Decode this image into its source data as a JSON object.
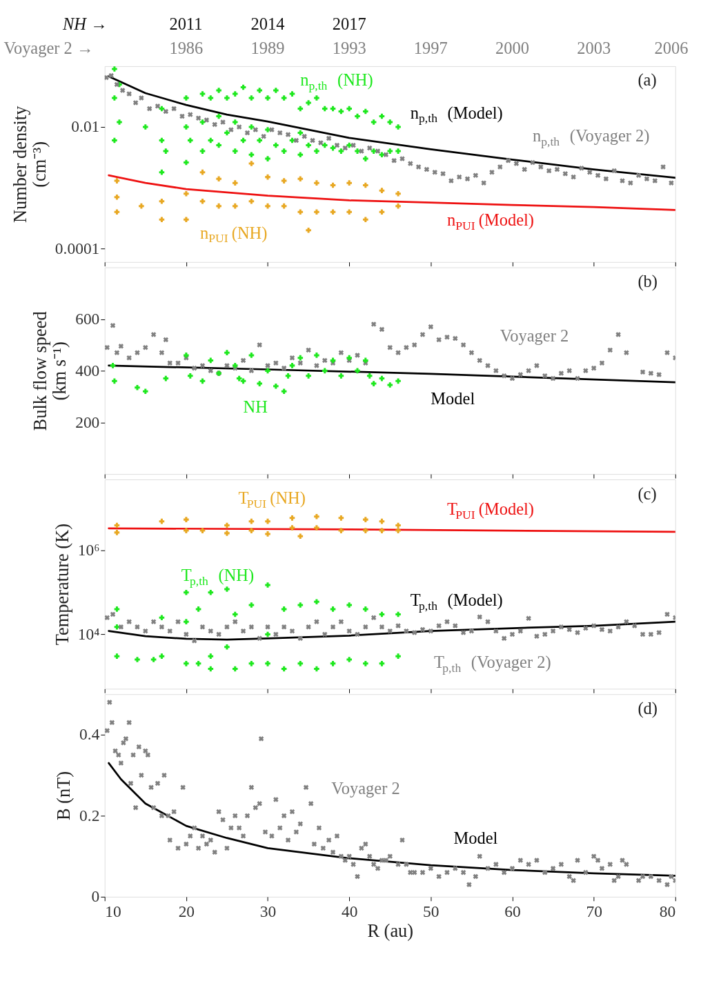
{
  "chart_data": [
    {
      "type": "scatter",
      "ylabel": "Number density\n(cm⁻³)",
      "xlim": [
        10,
        80
      ],
      "xticks": [
        10,
        20,
        30,
        40,
        50,
        60,
        70,
        80
      ],
      "ylim": [
        6e-05,
        0.1
      ],
      "yticks": [
        0.0001,
        0.01
      ],
      "log": true,
      "grid": false,
      "legend": false,
      "tick_labels": "y",
      "annotations": [
        "(a)",
        "NH →",
        "2011",
        "2014",
        "2017",
        "Voyager 2 →",
        "1986",
        "1989",
        "1993",
        "1997",
        "2000",
        "2003",
        "2006"
      ],
      "series": [
        {
          "name": "n$_{p,th}$ (NH)",
          "color": "#1ee81e",
          "marker": "cross",
          "x": [
            11.2,
            11.2,
            11.2,
            11.8,
            11.8,
            15,
            17,
            17,
            17,
            17.5,
            20,
            20,
            20,
            20.5,
            22,
            22,
            22,
            23,
            23,
            24,
            24,
            24,
            25,
            25,
            26,
            26,
            26,
            27,
            27,
            28,
            28,
            28,
            29,
            29,
            30,
            30,
            30,
            31,
            31,
            32,
            32,
            33,
            33,
            34,
            34,
            34,
            35,
            35,
            36,
            36,
            37,
            37,
            38,
            38,
            39,
            39,
            40,
            40,
            41,
            41,
            42,
            42,
            43,
            43,
            44,
            44,
            45,
            45,
            46,
            46
          ],
          "values": [
            0.09,
            0.03,
            0.006,
            0.05,
            0.012,
            0.01,
            0.02,
            0.006,
            0.0018,
            0.004,
            0.03,
            0.01,
            0.0026,
            0.006,
            0.035,
            0.012,
            0.004,
            0.03,
            0.006,
            0.04,
            0.015,
            0.005,
            0.03,
            0.008,
            0.035,
            0.012,
            0.004,
            0.045,
            0.006,
            0.03,
            0.01,
            0.0035,
            0.04,
            0.006,
            0.03,
            0.009,
            0.003,
            0.04,
            0.005,
            0.03,
            0.004,
            0.035,
            0.006,
            0.02,
            0.008,
            0.0035,
            0.025,
            0.005,
            0.03,
            0.004,
            0.02,
            0.005,
            0.02,
            0.0045,
            0.018,
            0.004,
            0.02,
            0.005,
            0.015,
            0.004,
            0.018,
            0.003,
            0.012,
            0.004,
            0.015,
            0.0035,
            0.012,
            0.004,
            0.01,
            0.004
          ]
        },
        {
          "name": "n$_{PUI}$ (NH)",
          "color": "#e8a823",
          "marker": "cross",
          "x": [
            11.5,
            11.5,
            11.5,
            14.5,
            17,
            17,
            20,
            20,
            22,
            22,
            24,
            24,
            26,
            26,
            28,
            28,
            30,
            30,
            32,
            32,
            34,
            34,
            35,
            36,
            36,
            38,
            38,
            40,
            40,
            42,
            42,
            44,
            44,
            46,
            46
          ],
          "values": [
            0.0013,
            0.0007,
            0.0004,
            0.0005,
            0.0006,
            0.0003,
            0.0008,
            0.0003,
            0.0018,
            0.0006,
            0.0014,
            0.0005,
            0.0012,
            0.0005,
            0.0025,
            0.0006,
            0.0015,
            0.0005,
            0.0013,
            0.0005,
            0.0014,
            0.0004,
            0.0002,
            0.0012,
            0.0004,
            0.0011,
            0.0004,
            0.0012,
            0.0004,
            0.0011,
            0.0003,
            0.0009,
            0.0004,
            0.0008,
            0.0005
          ]
        },
        {
          "name": "n$_{p,th}$ (Voyager 2)",
          "color": "#808080",
          "marker": "x",
          "x": [
            10.2,
            10.8,
            11.5,
            12.2,
            13,
            13.8,
            14.5,
            15.5,
            16.5,
            17.5,
            18.5,
            19.5,
            20.5,
            21.5,
            22.5,
            23.5,
            24.5,
            25.5,
            26.5,
            27.5,
            28.5,
            29.5,
            30.5,
            31.5,
            32.5,
            33.5,
            34.5,
            35.5,
            36.5,
            37.5,
            38.5,
            39.5,
            40.5,
            41.5,
            42.5,
            43.5,
            44.5,
            45.5,
            46.5,
            47.5,
            48.5,
            49.5,
            50.5,
            51.5,
            52.5,
            53.5,
            54.5,
            55.5,
            56.5,
            57.5,
            58.5,
            59.5,
            60.5,
            61.5,
            62.5,
            63.5,
            64.5,
            65.5,
            66.5,
            67.5,
            68.5,
            69.5,
            70.5,
            71.5,
            72.5,
            73.5,
            74.5,
            75.5,
            76.5,
            77.5,
            78.5,
            79.5
          ],
          "values": [
            0.065,
            0.07,
            0.05,
            0.04,
            0.035,
            0.025,
            0.03,
            0.02,
            0.022,
            0.018,
            0.02,
            0.015,
            0.016,
            0.014,
            0.013,
            0.011,
            0.012,
            0.009,
            0.01,
            0.008,
            0.009,
            0.007,
            0.009,
            0.008,
            0.0075,
            0.006,
            0.007,
            0.006,
            0.0055,
            0.0065,
            0.005,
            0.0045,
            0.005,
            0.004,
            0.0045,
            0.004,
            0.0035,
            0.0028,
            0.003,
            0.0025,
            0.0022,
            0.002,
            0.0018,
            0.0017,
            0.0013,
            0.0015,
            0.0014,
            0.0016,
            0.0012,
            0.0018,
            0.0022,
            0.0028,
            0.0025,
            0.002,
            0.0026,
            0.0022,
            0.0019,
            0.002,
            0.0017,
            0.0015,
            0.0021,
            0.0018,
            0.0016,
            0.0014,
            0.0019,
            0.0013,
            0.0012,
            0.0016,
            0.0014,
            0.0013,
            0.0022,
            0.0012
          ]
        },
        {
          "name": "n$_{p,th}$ (Model)",
          "type": "line",
          "color": "#000000",
          "x": [
            10.5,
            15,
            20,
            25,
            30,
            40,
            50,
            60,
            70,
            80
          ],
          "values": [
            0.068,
            0.036,
            0.023,
            0.016,
            0.0123,
            0.0066,
            0.0043,
            0.0029,
            0.002,
            0.00146
          ]
        },
        {
          "name": "n$_{PUI}$ (Model)",
          "type": "line",
          "color": "#ee1111",
          "x": [
            10.5,
            15,
            20,
            30,
            40,
            50,
            60,
            70,
            80
          ],
          "values": [
            0.0016,
            0.0012,
            0.00095,
            0.00074,
            0.00062,
            0.00057,
            0.00052,
            0.00048,
            0.00043
          ]
        }
      ]
    },
    {
      "type": "scatter",
      "ylabel": "Bulk flow speed\n(km s⁻¹)",
      "xlim": [
        10,
        80
      ],
      "xticks": [
        10,
        20,
        30,
        40,
        50,
        60,
        70,
        80
      ],
      "ylim": [
        0,
        800
      ],
      "yticks": [
        200,
        400,
        600
      ],
      "grid": false,
      "legend": false,
      "tick_labels": "y",
      "annotations": [
        "(b)"
      ],
      "series": [
        {
          "name": "Voyager 2",
          "color": "#808080",
          "marker": "x",
          "x": [
            10.3,
            11,
            11.5,
            12,
            13,
            14,
            15,
            16,
            17,
            17.5,
            18,
            19,
            20,
            21,
            22,
            23,
            24,
            25,
            26,
            27,
            28,
            29,
            30,
            31,
            32,
            33,
            34,
            35,
            36,
            37,
            38,
            39,
            40,
            41,
            42,
            43,
            44,
            45,
            46,
            47,
            48,
            49,
            50,
            51,
            52,
            53,
            54,
            55,
            56,
            57,
            58,
            59,
            60,
            61,
            62,
            63,
            64,
            65,
            66,
            67,
            68,
            69,
            70,
            71,
            72,
            73,
            74,
            76,
            77,
            78,
            79,
            80
          ],
          "values": [
            490,
            575,
            470,
            495,
            450,
            470,
            490,
            540,
            470,
            520,
            430,
            430,
            450,
            410,
            420,
            400,
            390,
            420,
            410,
            440,
            400,
            500,
            420,
            430,
            410,
            450,
            430,
            480,
            420,
            440,
            430,
            470,
            440,
            460,
            430,
            580,
            560,
            490,
            470,
            490,
            500,
            540,
            570,
            520,
            530,
            525,
            500,
            470,
            440,
            420,
            400,
            380,
            370,
            385,
            400,
            420,
            380,
            370,
            390,
            400,
            370,
            400,
            410,
            430,
            480,
            540,
            470,
            395,
            390,
            385,
            470,
            450
          ]
        },
        {
          "name": "NH",
          "color": "#1ee81e",
          "marker": "cross",
          "x": [
            11,
            11.2,
            14,
            15,
            17.5,
            20,
            20.5,
            22,
            23,
            24,
            25,
            26,
            26.5,
            27,
            28,
            29,
            30,
            31,
            32,
            32.5,
            33,
            34,
            35,
            36,
            37,
            38,
            39,
            40,
            41,
            42,
            42.5,
            43,
            44,
            45,
            46
          ],
          "values": [
            420,
            360,
            335,
            320,
            370,
            460,
            380,
            360,
            440,
            390,
            470,
            420,
            370,
            360,
            460,
            350,
            400,
            340,
            320,
            380,
            420,
            450,
            380,
            460,
            400,
            440,
            380,
            450,
            400,
            440,
            380,
            350,
            370,
            345,
            360
          ]
        },
        {
          "name": "Model",
          "type": "line",
          "color": "#000000",
          "x": [
            10.5,
            30,
            50,
            80
          ],
          "values": [
            420,
            405,
            388,
            355
          ]
        }
      ]
    },
    {
      "type": "scatter",
      "ylabel": "Temperature (K)",
      "xlim": [
        10,
        80
      ],
      "xticks": [
        10,
        20,
        30,
        40,
        50,
        60,
        70,
        80
      ],
      "ylim": [
        500,
        50000000
      ],
      "yticks": [
        {
          "value": 10000,
          "label": "10⁴"
        },
        {
          "value": 1000000,
          "label": "10⁶"
        }
      ],
      "log": true,
      "grid": false,
      "legend": false,
      "tick_labels": "y",
      "annotations": [
        "(c)"
      ],
      "series": [
        {
          "name": "T$_{PUI}$ (NH)",
          "color": "#e8a823",
          "marker": "cross",
          "x": [
            11.5,
            11.5,
            17,
            20,
            20,
            22,
            25,
            25,
            28,
            28,
            30,
            30,
            33,
            33,
            34,
            36,
            36,
            39,
            39,
            42,
            42,
            44,
            44,
            46,
            46
          ],
          "values": [
            4000000,
            2700000,
            5000000,
            5500000,
            3000000,
            3000000,
            4000000,
            2600000,
            5000000,
            3000000,
            5000000,
            2500000,
            6000000,
            3500000,
            2200000,
            6500000,
            3500000,
            6000000,
            3000000,
            5500000,
            3000000,
            5000000,
            3000000,
            4000000,
            3000000
          ]
        },
        {
          "name": "T$_{PUI}$ (Model)",
          "type": "line",
          "color": "#ee1111",
          "x": [
            10.5,
            40,
            80
          ],
          "values": [
            3400000,
            3200000,
            2800000
          ]
        },
        {
          "name": "T$_{p,th}$ (NH)",
          "color": "#1ee81e",
          "marker": "cross",
          "x": [
            11.5,
            11.5,
            11.5,
            14,
            16,
            17,
            17,
            20,
            20,
            20,
            21.5,
            21.5,
            23,
            23,
            23,
            25,
            25,
            26,
            26,
            28,
            28,
            30,
            30,
            30,
            32,
            32,
            34,
            34,
            36,
            36,
            38,
            38,
            40,
            40,
            42,
            42,
            44,
            44,
            46,
            46
          ],
          "values": [
            40000,
            15000,
            3000,
            2500,
            2500,
            25000,
            3000,
            100000,
            20000,
            2000,
            40000,
            2000,
            100000,
            3000,
            1500,
            120000,
            5000,
            30000,
            1500,
            50000,
            2000,
            150000,
            10000,
            2000,
            40000,
            1500,
            50000,
            2000,
            60000,
            1500,
            40000,
            2000,
            50000,
            2500,
            40000,
            2000,
            30000,
            2000,
            30000,
            3000
          ]
        },
        {
          "name": "T$_{p,th}$ (Voyager 2)",
          "color": "#808080",
          "marker": "x",
          "x": [
            10.3,
            11,
            12,
            13,
            14,
            15,
            16,
            17,
            18,
            19,
            20,
            21,
            22,
            23,
            24,
            25,
            26,
            27,
            28,
            29,
            30,
            31,
            32,
            33,
            34,
            35,
            36,
            37,
            38,
            39,
            40,
            41,
            42,
            43,
            44,
            45,
            46,
            47,
            48,
            49,
            50,
            51,
            52,
            53,
            54,
            55,
            56,
            57,
            58,
            59,
            60,
            61,
            62,
            63,
            64,
            65,
            66,
            67,
            68,
            69,
            70,
            71,
            72,
            73,
            74,
            75,
            76,
            77,
            78,
            79,
            80
          ],
          "values": [
            25000,
            30000,
            15000,
            20000,
            15000,
            12000,
            20000,
            15000,
            12000,
            20000,
            10000,
            7000,
            15000,
            12000,
            10000,
            15000,
            20000,
            12000,
            15000,
            8000,
            15000,
            10000,
            15000,
            12000,
            8000,
            15000,
            20000,
            10000,
            15000,
            20000,
            12000,
            10000,
            15000,
            25000,
            15000,
            12000,
            16000,
            12000,
            11000,
            13000,
            12000,
            16000,
            20000,
            16000,
            11000,
            12000,
            26000,
            20000,
            12000,
            8000,
            10000,
            12000,
            24000,
            9000,
            10000,
            12000,
            15000,
            13000,
            11000,
            14000,
            16000,
            13000,
            12000,
            15000,
            20000,
            16000,
            10000,
            10000,
            11000,
            30000,
            25000
          ]
        },
        {
          "name": "T$_{p,th}$ (Model)",
          "type": "line",
          "color": "#000000",
          "x": [
            10.5,
            15,
            20,
            25,
            30,
            40,
            50,
            60,
            70,
            80
          ],
          "values": [
            12000,
            9000,
            7800,
            7500,
            8000,
            9300,
            12000,
            14000,
            16000,
            20000
          ]
        }
      ]
    },
    {
      "type": "scatter",
      "xlabel": "R (au)",
      "ylabel": "B (nT)",
      "xlim": [
        10,
        80
      ],
      "xticks": [
        10,
        20,
        30,
        40,
        50,
        60,
        70,
        80
      ],
      "ylim": [
        0,
        0.5
      ],
      "yticks": [
        0,
        0.2,
        0.4
      ],
      "grid": false,
      "legend": false,
      "annotations": [
        "(d)"
      ],
      "series": [
        {
          "name": "Voyager 2",
          "color": "#808080",
          "marker": "x",
          "x": [
            10.3,
            10.6,
            10.9,
            11.3,
            11.7,
            12,
            12.3,
            12.6,
            13,
            13.2,
            13.5,
            13.8,
            14.2,
            14.5,
            15,
            15.3,
            15.7,
            16,
            16.5,
            17,
            17.3,
            17.8,
            18,
            18.5,
            19,
            19.6,
            20,
            20.5,
            21,
            21.5,
            22,
            22.5,
            23,
            23.5,
            24,
            24.5,
            25,
            25.5,
            26,
            26.5,
            27,
            27.5,
            28,
            28.5,
            29,
            29.2,
            29.7,
            30.5,
            31,
            31.5,
            32,
            32.5,
            33,
            33.5,
            34,
            34.7,
            35.3,
            35.7,
            36.3,
            36.8,
            37.5,
            38,
            38.5,
            39,
            39.5,
            40,
            40.5,
            41,
            41.5,
            42,
            42.5,
            43,
            43.5,
            44,
            44.5,
            45,
            46,
            46.5,
            47,
            47.5,
            48,
            49,
            50,
            51,
            52,
            53,
            54,
            54.7,
            55.5,
            56,
            57,
            58,
            59,
            60,
            61,
            62,
            63,
            64,
            65,
            66,
            67,
            67.5,
            68,
            69,
            70,
            70.5,
            71,
            72,
            72.5,
            73,
            73.5,
            74,
            75.5,
            76,
            77,
            78,
            79,
            79.5,
            80
          ],
          "values": [
            0.41,
            0.48,
            0.43,
            0.36,
            0.35,
            0.33,
            0.38,
            0.39,
            0.43,
            0.28,
            0.35,
            0.22,
            0.37,
            0.3,
            0.36,
            0.35,
            0.27,
            0.22,
            0.28,
            0.2,
            0.3,
            0.2,
            0.14,
            0.21,
            0.12,
            0.27,
            0.13,
            0.15,
            0.17,
            0.12,
            0.15,
            0.13,
            0.14,
            0.11,
            0.21,
            0.19,
            0.12,
            0.17,
            0.2,
            0.17,
            0.15,
            0.2,
            0.27,
            0.22,
            0.23,
            0.39,
            0.16,
            0.15,
            0.24,
            0.17,
            0.2,
            0.14,
            0.21,
            0.16,
            0.18,
            0.27,
            0.23,
            0.13,
            0.17,
            0.12,
            0.14,
            0.11,
            0.15,
            0.1,
            0.09,
            0.1,
            0.08,
            0.05,
            0.12,
            0.13,
            0.1,
            0.08,
            0.07,
            0.09,
            0.09,
            0.1,
            0.08,
            0.14,
            0.08,
            0.06,
            0.06,
            0.06,
            0.07,
            0.05,
            0.06,
            0.07,
            0.06,
            0.03,
            0.05,
            0.1,
            0.07,
            0.08,
            0.06,
            0.07,
            0.09,
            0.08,
            0.09,
            0.06,
            0.07,
            0.08,
            0.05,
            0.04,
            0.09,
            0.06,
            0.1,
            0.09,
            0.07,
            0.08,
            0.04,
            0.05,
            0.09,
            0.08,
            0.04,
            0.05,
            0.05,
            0.04,
            0.03,
            0.05,
            0.04
          ]
        },
        {
          "name": "Model",
          "type": "line",
          "color": "#000000",
          "x": [
            10.5,
            12,
            15,
            20,
            25,
            30,
            40,
            50,
            60,
            70,
            80
          ],
          "values": [
            0.33,
            0.29,
            0.23,
            0.175,
            0.145,
            0.12,
            0.095,
            0.078,
            0.066,
            0.058,
            0.052
          ]
        }
      ]
    }
  ]
}
